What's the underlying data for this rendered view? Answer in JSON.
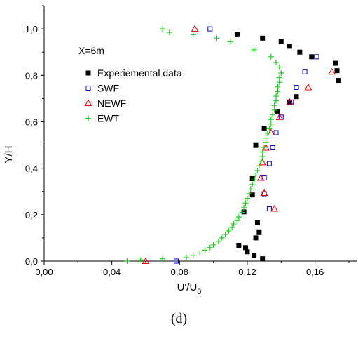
{
  "chart_data": {
    "type": "scatter",
    "xlabel": "U'/U",
    "xlabel_subscript": "0",
    "ylabel": "Y/H",
    "xlim": [
      0.0,
      0.185
    ],
    "ylim": [
      0.0,
      1.1
    ],
    "xticks": [
      0.0,
      0.04,
      0.08,
      0.12,
      0.16
    ],
    "xtick_labels": [
      "0,00",
      "0,04",
      "0,08",
      "0,12",
      "0,16"
    ],
    "yticks": [
      0.0,
      0.2,
      0.4,
      0.6,
      0.8,
      1.0
    ],
    "ytick_labels": [
      "0,0",
      "0,2",
      "0,4",
      "0,6",
      "0,8",
      "1,0"
    ],
    "annotation": "X=6m",
    "legend_position": "top-right",
    "series": [
      {
        "name": "Experiemental data",
        "marker": "filled-square",
        "color": "#000000",
        "points": [
          [
            0.114,
            0.975
          ],
          [
            0.129,
            0.96
          ],
          [
            0.14,
            0.945
          ],
          [
            0.145,
            0.925
          ],
          [
            0.151,
            0.9
          ],
          [
            0.158,
            0.88
          ],
          [
            0.172,
            0.852
          ],
          [
            0.173,
            0.82
          ],
          [
            0.174,
            0.778
          ],
          [
            0.149,
            0.708
          ],
          [
            0.145,
            0.685
          ],
          [
            0.138,
            0.642
          ],
          [
            0.13,
            0.57
          ],
          [
            0.125,
            0.498
          ],
          [
            0.123,
            0.355
          ],
          [
            0.123,
            0.285
          ],
          [
            0.118,
            0.212
          ],
          [
            0.126,
            0.165
          ],
          [
            0.127,
            0.123
          ],
          [
            0.125,
            0.1
          ],
          [
            0.115,
            0.068
          ],
          [
            0.119,
            0.058
          ],
          [
            0.12,
            0.04
          ],
          [
            0.124,
            0.025
          ],
          [
            0.129,
            0.01
          ]
        ]
      },
      {
        "name": "SWF",
        "marker": "open-square",
        "color": "#0000cc",
        "points": [
          [
            0.098,
            1.0
          ],
          [
            0.161,
            0.88
          ],
          [
            0.154,
            0.815
          ],
          [
            0.149,
            0.748
          ],
          [
            0.146,
            0.685
          ],
          [
            0.14,
            0.62
          ],
          [
            0.137,
            0.553
          ],
          [
            0.135,
            0.488
          ],
          [
            0.133,
            0.42
          ],
          [
            0.13,
            0.358
          ],
          [
            0.13,
            0.29
          ],
          [
            0.133,
            0.225
          ],
          [
            0.078,
            0.0
          ]
        ]
      },
      {
        "name": "NEWF",
        "marker": "open-triangle",
        "color": "#ee0000",
        "points": [
          [
            0.089,
            1.0
          ],
          [
            0.17,
            0.815
          ],
          [
            0.156,
            0.748
          ],
          [
            0.145,
            0.685
          ],
          [
            0.139,
            0.62
          ],
          [
            0.134,
            0.553
          ],
          [
            0.131,
            0.488
          ],
          [
            0.129,
            0.425
          ],
          [
            0.128,
            0.358
          ],
          [
            0.13,
            0.293
          ],
          [
            0.136,
            0.225
          ],
          [
            0.06,
            0.0
          ]
        ]
      },
      {
        "name": "EWT",
        "marker": "plus",
        "color": "#22cc22",
        "points": [
          [
            0.07,
            1.0
          ],
          [
            0.074,
            0.985
          ],
          [
            0.088,
            0.975
          ],
          [
            0.102,
            0.96
          ],
          [
            0.11,
            0.945
          ],
          [
            0.124,
            0.91
          ],
          [
            0.134,
            0.88
          ],
          [
            0.137,
            0.855
          ],
          [
            0.139,
            0.835
          ],
          [
            0.14,
            0.81
          ],
          [
            0.139,
            0.79
          ],
          [
            0.139,
            0.77
          ],
          [
            0.138,
            0.75
          ],
          [
            0.138,
            0.73
          ],
          [
            0.137,
            0.71
          ],
          [
            0.137,
            0.69
          ],
          [
            0.136,
            0.67
          ],
          [
            0.136,
            0.65
          ],
          [
            0.135,
            0.63
          ],
          [
            0.134,
            0.61
          ],
          [
            0.134,
            0.59
          ],
          [
            0.133,
            0.57
          ],
          [
            0.132,
            0.55
          ],
          [
            0.131,
            0.53
          ],
          [
            0.131,
            0.51
          ],
          [
            0.13,
            0.49
          ],
          [
            0.129,
            0.47
          ],
          [
            0.129,
            0.45
          ],
          [
            0.128,
            0.43
          ],
          [
            0.127,
            0.41
          ],
          [
            0.126,
            0.39
          ],
          [
            0.125,
            0.37
          ],
          [
            0.124,
            0.35
          ],
          [
            0.123,
            0.33
          ],
          [
            0.122,
            0.31
          ],
          [
            0.121,
            0.29
          ],
          [
            0.12,
            0.27
          ],
          [
            0.119,
            0.25
          ],
          [
            0.118,
            0.23
          ],
          [
            0.117,
            0.21
          ],
          [
            0.115,
            0.19
          ],
          [
            0.114,
            0.175
          ],
          [
            0.112,
            0.16
          ],
          [
            0.111,
            0.145
          ],
          [
            0.109,
            0.13
          ],
          [
            0.107,
            0.115
          ],
          [
            0.105,
            0.1
          ],
          [
            0.103,
            0.085
          ],
          [
            0.1,
            0.07
          ],
          [
            0.098,
            0.058
          ],
          [
            0.095,
            0.047
          ],
          [
            0.092,
            0.035
          ],
          [
            0.088,
            0.025
          ],
          [
            0.084,
            0.015
          ],
          [
            0.07,
            0.01
          ],
          [
            0.057,
            0.005
          ],
          [
            0.049,
            0.0
          ]
        ]
      }
    ]
  },
  "caption": "(d)"
}
